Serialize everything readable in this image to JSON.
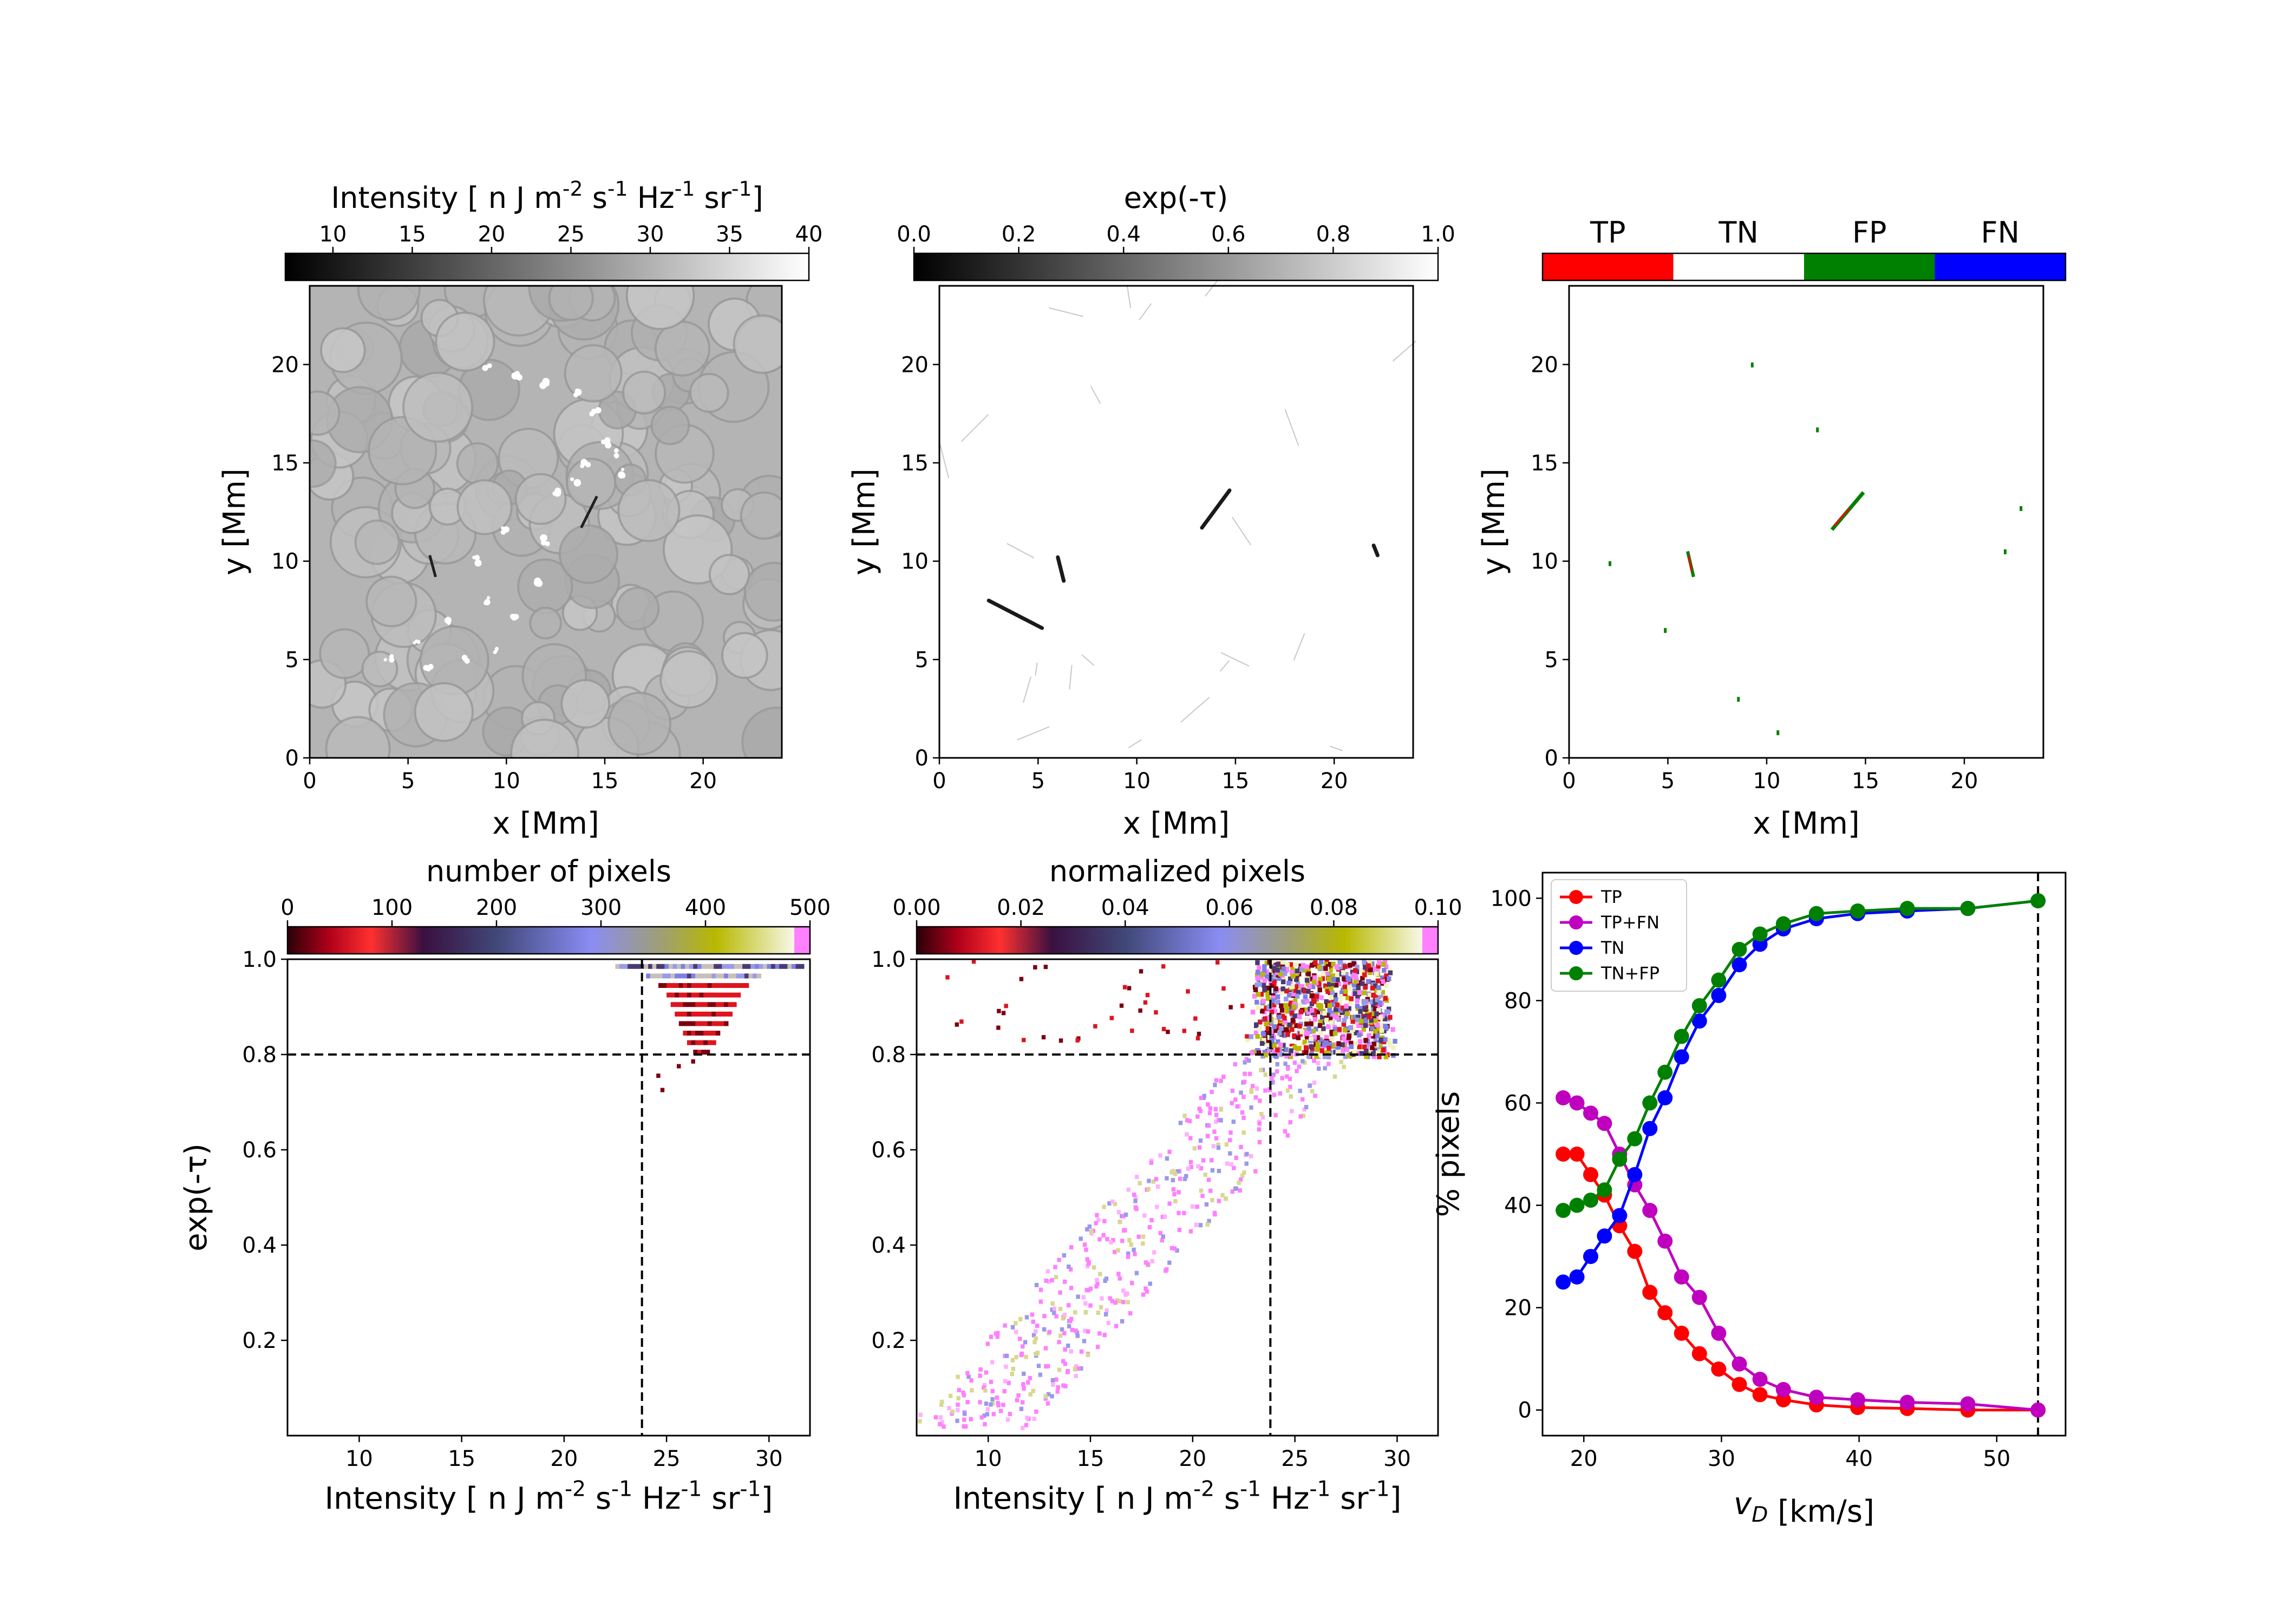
{
  "chart_data": [
    {
      "type": "heatmap",
      "panel": "intensity-map",
      "colorbar_label": "Intensity [ n J m$^{-2}$ s$^{-1}$ Hz$^{-1}$ sr$^{-1}$]",
      "colorbar_ticks": [
        "10",
        "15",
        "20",
        "25",
        "30",
        "35",
        "40"
      ],
      "colorbar_range": [
        7,
        40
      ],
      "colormap": "gray",
      "xlabel": "x [Mm]",
      "ylabel": "y [Mm]",
      "xlim": [
        0,
        24
      ],
      "ylim": [
        0,
        24
      ],
      "xticks": [
        "0",
        "5",
        "10",
        "15",
        "20"
      ],
      "yticks": [
        "0",
        "5",
        "10",
        "15",
        "20"
      ]
    },
    {
      "type": "heatmap",
      "panel": "exp-tau-map",
      "colorbar_label": "exp(-τ)",
      "colorbar_ticks": [
        "0.0",
        "0.2",
        "0.4",
        "0.6",
        "0.8",
        "1.0"
      ],
      "colorbar_range": [
        0,
        1
      ],
      "colormap": "gray",
      "xlabel": "x [Mm]",
      "ylabel": "y [Mm]",
      "xlim": [
        0,
        24
      ],
      "ylim": [
        0,
        24
      ],
      "xticks": [
        "0",
        "5",
        "10",
        "15",
        "20"
      ],
      "yticks": [
        "0",
        "5",
        "10",
        "15",
        "20"
      ],
      "features": [
        {
          "x": [
            6.0,
            6.3
          ],
          "y": [
            10.2,
            9.0
          ]
        },
        {
          "x": [
            13.3,
            14.7
          ],
          "y": [
            11.7,
            13.6
          ]
        },
        {
          "x": [
            2.5,
            5.2
          ],
          "y": [
            8.0,
            6.6
          ]
        },
        {
          "x": [
            22.0,
            22.2
          ],
          "y": [
            10.8,
            10.3
          ]
        }
      ]
    },
    {
      "type": "heatmap",
      "panel": "classification-map",
      "legend": [
        {
          "label": "TP",
          "color": "#ff0000"
        },
        {
          "label": "TN",
          "color": "#ffffff"
        },
        {
          "label": "FP",
          "color": "#008000"
        },
        {
          "label": "FN",
          "color": "#0000ff"
        }
      ],
      "xlabel": "x [Mm]",
      "ylabel": "y [Mm]",
      "xlim": [
        0,
        24
      ],
      "ylim": [
        0,
        24
      ],
      "xticks": [
        "0",
        "5",
        "10",
        "15",
        "20"
      ],
      "yticks": [
        "0",
        "5",
        "10",
        "15",
        "20"
      ]
    },
    {
      "type": "heatmap",
      "panel": "hist-counts",
      "colorbar_label": "number of pixels",
      "colorbar_ticks": [
        "0",
        "100",
        "200",
        "300",
        "400",
        "500"
      ],
      "colorbar_range": [
        0,
        500
      ],
      "xlabel": "Intensity [ n J m$^{-2}$ s$^{-1}$ Hz$^{-1}$ sr$^{-1}$]",
      "ylabel": "exp(-τ)",
      "xlim": [
        6.5,
        32
      ],
      "ylim": [
        0,
        1
      ],
      "xticks": [
        "10",
        "15",
        "20",
        "25",
        "30"
      ],
      "yticks": [
        "0.2",
        "0.4",
        "0.6",
        "0.8",
        "1.0"
      ],
      "threshold_x": 23.8,
      "threshold_y": 0.8
    },
    {
      "type": "heatmap",
      "panel": "hist-normalized",
      "colorbar_label": "normalized pixels",
      "colorbar_ticks": [
        "0.00",
        "0.02",
        "0.04",
        "0.06",
        "0.08",
        "0.10"
      ],
      "colorbar_range": [
        0,
        0.1
      ],
      "xlabel": "Intensity [ n J m$^{-2}$ s$^{-1}$ Hz$^{-1}$ sr$^{-1}$]",
      "xlim": [
        6.5,
        32
      ],
      "ylim": [
        0,
        1
      ],
      "xticks": [
        "10",
        "15",
        "20",
        "25",
        "30"
      ],
      "yticks": [
        "0.2",
        "0.4",
        "0.6",
        "0.8",
        "1.0"
      ],
      "threshold_x": 23.8,
      "threshold_y": 0.8
    },
    {
      "type": "line",
      "panel": "percent-pixels",
      "xlabel": "v_D [km/s]",
      "ylabel": "% pixels",
      "xlim": [
        17,
        55
      ],
      "ylim": [
        -5,
        105
      ],
      "xticks": [
        "20",
        "30",
        "40",
        "50"
      ],
      "yticks": [
        "0",
        "20",
        "40",
        "60",
        "80",
        "100"
      ],
      "legend_position": "top-left",
      "vline_x": 53,
      "x": [
        18.5,
        19.5,
        20.5,
        21.5,
        22.6,
        23.7,
        24.8,
        25.9,
        27.1,
        28.4,
        29.8,
        31.3,
        32.8,
        34.5,
        36.9,
        39.9,
        43.5,
        47.9,
        53.0
      ],
      "series": [
        {
          "name": "TP",
          "color": "#ff0000",
          "values": [
            50,
            50,
            46,
            42,
            36,
            31,
            23,
            19,
            15,
            11,
            8,
            5,
            3,
            2,
            1,
            0.5,
            0.3,
            0,
            0
          ]
        },
        {
          "name": "TP+FN",
          "color": "#bf00bf",
          "values": [
            61,
            60,
            58,
            56,
            50,
            44,
            39,
            33,
            26,
            22,
            15,
            9,
            6,
            4,
            2.5,
            2,
            1.5,
            1.2,
            0
          ]
        },
        {
          "name": "TN",
          "color": "#0000ff",
          "values": [
            25,
            26,
            30,
            34,
            38,
            46,
            55,
            61,
            69,
            76,
            81,
            87,
            91,
            94,
            96,
            97,
            97.5,
            98,
            99.5
          ]
        },
        {
          "name": "TN+FP",
          "color": "#008000",
          "values": [
            39,
            40,
            41,
            43,
            49,
            53,
            60,
            66,
            73,
            79,
            84,
            90,
            93,
            95,
            97,
            97.5,
            98,
            98,
            99.5
          ]
        }
      ]
    }
  ]
}
